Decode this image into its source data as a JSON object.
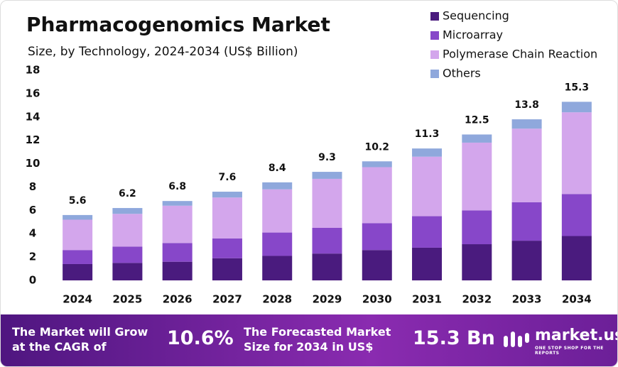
{
  "chart_data": {
    "type": "stacked-bar",
    "title": "Pharmacogenomics Market",
    "subtitle": "Size, by Technology, 2024-2034 (US$ Billion)",
    "categories": [
      "2024",
      "2025",
      "2026",
      "2027",
      "2028",
      "2029",
      "2030",
      "2031",
      "2032",
      "2033",
      "2034"
    ],
    "series": [
      {
        "name": "Sequencing",
        "color": "#4a1b7e",
        "values": [
          1.4,
          1.5,
          1.6,
          1.9,
          2.1,
          2.3,
          2.6,
          2.8,
          3.1,
          3.4,
          3.8
        ]
      },
      {
        "name": "Microarray",
        "color": "#8747c9",
        "values": [
          1.2,
          1.4,
          1.6,
          1.7,
          2.0,
          2.2,
          2.3,
          2.7,
          2.9,
          3.3,
          3.6
        ]
      },
      {
        "name": "Polymerase Chain Reaction",
        "color": "#d3a6ec",
        "values": [
          2.6,
          2.8,
          3.2,
          3.5,
          3.7,
          4.2,
          4.8,
          5.1,
          5.8,
          6.3,
          7.0
        ]
      },
      {
        "name": "Others",
        "color": "#8fa8dc",
        "values": [
          0.4,
          0.5,
          0.4,
          0.5,
          0.6,
          0.6,
          0.5,
          0.7,
          0.7,
          0.8,
          0.9
        ]
      }
    ],
    "totals": [
      5.6,
      6.2,
      6.8,
      7.6,
      8.4,
      9.3,
      10.2,
      11.3,
      12.5,
      13.8,
      15.3
    ],
    "ylim": [
      0,
      18
    ],
    "yticks": [
      0,
      2,
      4,
      6,
      8,
      10,
      12,
      14,
      16,
      18
    ],
    "grid": false,
    "legend": "top-right"
  },
  "footer": {
    "cagr_text": "The Market will Grow at the CAGR of",
    "cagr_value": "10.6%",
    "forecast_text": "The Forecasted Market Size for 2034 in US$",
    "forecast_value": "15.3 Bn",
    "brand": "market.us",
    "tagline": "ONE STOP SHOP FOR THE REPORTS"
  }
}
